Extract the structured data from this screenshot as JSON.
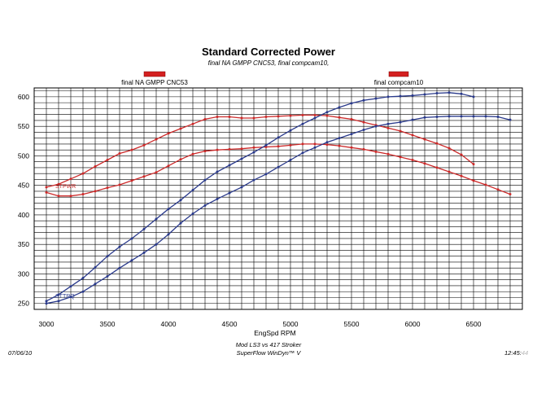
{
  "chart_data": {
    "type": "line",
    "title": "Standard Corrected Power",
    "subtitle": "final NA GMPP CNC53, final compcam10,",
    "xlabel": "EngSpd RPM",
    "ylabel": "",
    "xlim": [
      2900,
      6900
    ],
    "ylim": [
      240,
      615
    ],
    "xticks": [
      3000,
      3500,
      4000,
      4500,
      5000,
      5500,
      6000,
      6500
    ],
    "yticks": [
      250,
      300,
      350,
      400,
      450,
      500,
      550,
      600
    ],
    "grid": true,
    "legend": [
      {
        "label": "final NA GMPP CNC53",
        "color": "#d42020"
      },
      {
        "label": "final compcam10",
        "color": "#d42020"
      }
    ],
    "annotations": {
      "red": "STPWR",
      "blue": "STTRQ"
    },
    "series": [
      {
        "color": "#cc2a2a",
        "x": [
          3000,
          3100,
          3200,
          3300,
          3400,
          3500,
          3600,
          3700,
          3800,
          3900,
          4000,
          4100,
          4200,
          4300,
          4400,
          4500,
          4600,
          4700,
          4800,
          4900,
          5000,
          5100,
          5200,
          5300,
          5400,
          5500,
          5600,
          5700,
          5800,
          5900,
          6000,
          6100,
          6200,
          6300,
          6400,
          6500
        ],
        "values": [
          447,
          452,
          461,
          470,
          482,
          493,
          504,
          510,
          518,
          528,
          538,
          546,
          554,
          562,
          566,
          566,
          564,
          564,
          566,
          567,
          568,
          569,
          569,
          568,
          565,
          562,
          557,
          552,
          547,
          542,
          535,
          528,
          521,
          513,
          502,
          486
        ]
      },
      {
        "color": "#cc2a2a",
        "x": [
          3000,
          3100,
          3200,
          3300,
          3400,
          3500,
          3600,
          3700,
          3800,
          3900,
          4000,
          4100,
          4200,
          4300,
          4400,
          4500,
          4600,
          4700,
          4800,
          4900,
          5000,
          5100,
          5200,
          5300,
          5400,
          5500,
          5600,
          5700,
          5800,
          5900,
          6000,
          6100,
          6200,
          6300,
          6400,
          6500,
          6600,
          6700,
          6800
        ],
        "values": [
          438,
          432,
          432,
          435,
          440,
          446,
          451,
          458,
          465,
          472,
          483,
          494,
          503,
          508,
          510,
          511,
          512,
          514,
          515,
          516,
          518,
          520,
          520,
          519,
          517,
          514,
          511,
          507,
          503,
          498,
          493,
          487,
          480,
          473,
          466,
          458,
          451,
          443,
          435
        ]
      },
      {
        "color": "#2a3a8c",
        "x": [
          3000,
          3100,
          3200,
          3300,
          3400,
          3500,
          3600,
          3700,
          3800,
          3900,
          4000,
          4100,
          4200,
          4300,
          4400,
          4500,
          4600,
          4700,
          4800,
          4900,
          5000,
          5100,
          5200,
          5300,
          5400,
          5500,
          5600,
          5700,
          5800,
          5900,
          6000,
          6100,
          6200,
          6300,
          6400,
          6500
        ],
        "values": [
          254,
          265,
          279,
          293,
          311,
          330,
          346,
          360,
          376,
          393,
          410,
          425,
          442,
          459,
          473,
          484,
          495,
          506,
          518,
          531,
          543,
          554,
          564,
          574,
          582,
          589,
          594,
          597,
          600,
          601,
          602,
          604,
          606,
          607,
          605,
          600
        ]
      },
      {
        "color": "#2a3a8c",
        "x": [
          3000,
          3100,
          3200,
          3300,
          3400,
          3500,
          3600,
          3700,
          3800,
          3900,
          4000,
          4100,
          4200,
          4300,
          4400,
          4500,
          4600,
          4700,
          4800,
          4900,
          5000,
          5100,
          5200,
          5300,
          5400,
          5500,
          5600,
          5700,
          5800,
          5900,
          6000,
          6100,
          6200,
          6300,
          6400,
          6500,
          6600,
          6700,
          6800
        ],
        "values": [
          250,
          254,
          261,
          270,
          283,
          296,
          310,
          323,
          336,
          350,
          367,
          386,
          402,
          416,
          427,
          437,
          447,
          459,
          469,
          481,
          493,
          505,
          514,
          523,
          530,
          537,
          544,
          550,
          554,
          557,
          561,
          565,
          566,
          567,
          567,
          567,
          567,
          566,
          561
        ]
      }
    ]
  },
  "footer": {
    "date": "07/06/10",
    "line1": "Mod LS3 vs 417 Stroker",
    "line2": "SuperFlow WinDyn™ V",
    "time": "12:45",
    "time_seconds": "44"
  }
}
